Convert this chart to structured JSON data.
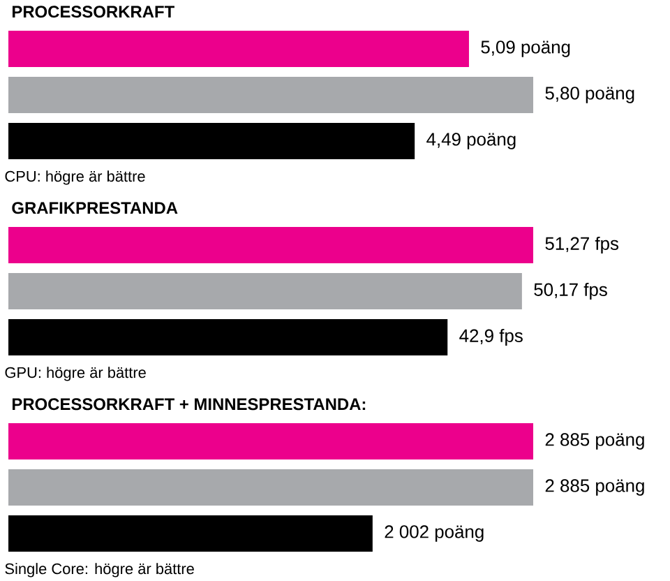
{
  "chart_data": [
    {
      "type": "bar",
      "orientation": "horizontal",
      "title": "PROCESSORKRAFT",
      "categories": [
        null,
        null,
        null
      ],
      "values": [
        5.09,
        5.8,
        4.49
      ],
      "colors": [
        "#ec008c",
        "#a7a9ac",
        "#000000"
      ],
      "value_labels": [
        "5,09 poäng",
        "5,80 poäng",
        "4,49 poäng"
      ],
      "tick_labels": false,
      "annotations": [
        "CPU: högre är bättre"
      ]
    },
    {
      "type": "bar",
      "orientation": "horizontal",
      "title": "GRAFIKPRESTANDA",
      "categories": [
        null,
        null,
        null
      ],
      "values": [
        51.27,
        50.17,
        42.9
      ],
      "colors": [
        "#ec008c",
        "#a7a9ac",
        "#000000"
      ],
      "value_labels": [
        "51,27 fps",
        "50,17 fps",
        "42,9 fps"
      ],
      "tick_labels": false,
      "annotations": [
        "GPU: högre är bättre"
      ]
    },
    {
      "type": "bar",
      "orientation": "horizontal",
      "title": "PROCESSORKRAFT + MINNESPRESTANDA:",
      "categories": [
        null,
        null,
        null
      ],
      "values": [
        2885,
        2885,
        2002
      ],
      "colors": [
        "#ec008c",
        "#a7a9ac",
        "#000000"
      ],
      "value_labels": [
        "2 885 poäng",
        "2 885 poäng",
        "2 002 poäng"
      ],
      "tick_labels": false,
      "annotations": [
        "Single Core: högre är bättre"
      ]
    }
  ]
}
